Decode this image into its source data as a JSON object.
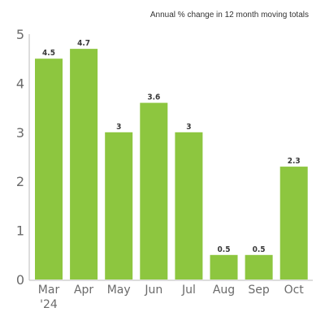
{
  "chart_data": {
    "type": "bar",
    "subtitle": "Annual % change in 12 month moving totals",
    "categories": [
      "Mar",
      "Apr",
      "May",
      "Jun",
      "Jul",
      "Aug",
      "Sep",
      "Oct"
    ],
    "category_sublabels": [
      "'24",
      "",
      "",
      "",
      "",
      "",
      "",
      ""
    ],
    "values": [
      4.5,
      4.7,
      3,
      3.6,
      3,
      0.5,
      0.5,
      2.3
    ],
    "value_labels": [
      "4.5",
      "4.7",
      "3",
      "3.6",
      "3",
      "0.5",
      "0.5",
      "2.3"
    ],
    "y_ticks": [
      "0",
      "1",
      "2",
      "3",
      "4",
      "5"
    ],
    "ylim": [
      0,
      5
    ],
    "grid": false,
    "bar_color": "#8dc63f",
    "axis_color": "#bbbbbb"
  }
}
